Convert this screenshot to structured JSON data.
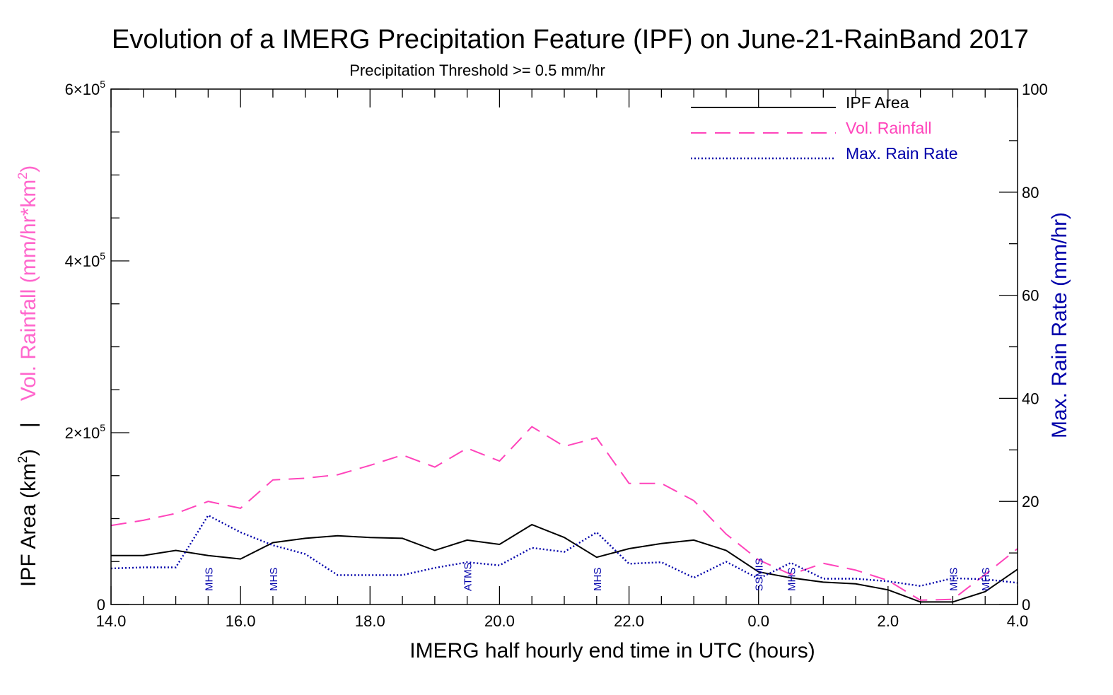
{
  "chart_data": {
    "type": "line",
    "title": "Evolution of a IMERG Precipitation Feature (IPF) on June-21-RainBand 2017",
    "subtitle": "Precipitation Threshold >= 0.5 mm/hr",
    "xlabel": "IMERG half hourly end time in UTC (hours)",
    "ylabel_left_top": "Vol. Rainfall (mm/hr*km",
    "ylabel_left_sup": "2",
    "ylabel_left_close": ")",
    "ylabel_left_separator": "|",
    "ylabel_left_bottom": "IPF Area (km",
    "ylabel_left_bottom_sup": "2",
    "ylabel_left_bottom_close": ")",
    "ylabel_right": "Max. Rain Rate (mm/hr)",
    "xlim": [
      0,
      14
    ],
    "ylim_left": [
      0,
      600000
    ],
    "ylim_right": [
      0,
      100
    ],
    "x_tick_positions": [
      0,
      2,
      4,
      6,
      8,
      10,
      12,
      14
    ],
    "x_tick_labels": [
      "14.0",
      "16.0",
      "18.0",
      "20.0",
      "22.0",
      "0.0",
      "2.0",
      "4.0"
    ],
    "y_left_ticks": [
      {
        "value": 0,
        "mantissa": "0",
        "exp": ""
      },
      {
        "value": 200000,
        "mantissa": "2×10",
        "exp": "5"
      },
      {
        "value": 400000,
        "mantissa": "4×10",
        "exp": "5"
      },
      {
        "value": 600000,
        "mantissa": "6×10",
        "exp": "5"
      }
    ],
    "y_right_ticks": [
      {
        "value": 0,
        "label": "0"
      },
      {
        "value": 20,
        "label": "20"
      },
      {
        "value": 40,
        "label": "40"
      },
      {
        "value": 60,
        "label": "60"
      },
      {
        "value": 80,
        "label": "80"
      },
      {
        "value": 100,
        "label": "100"
      }
    ],
    "x": [
      0,
      0.5,
      1,
      1.5,
      2,
      2.5,
      3,
      3.5,
      4,
      4.5,
      5,
      5.5,
      6,
      6.5,
      7,
      7.5,
      8,
      8.5,
      9,
      9.5,
      10,
      10.5,
      11,
      11.5,
      12,
      12.5,
      13,
      13.5,
      14
    ],
    "series": [
      {
        "name": "IPF Area",
        "axis": "left",
        "color": "#000000",
        "dash": "solid",
        "values": [
          57000,
          57000,
          63000,
          57000,
          53000,
          72000,
          77000,
          80000,
          78000,
          77000,
          63000,
          75000,
          70000,
          93000,
          78000,
          55000,
          65000,
          71000,
          75000,
          63000,
          38000,
          31000,
          26000,
          24000,
          17000,
          3000,
          3000,
          15000,
          41000
        ]
      },
      {
        "name": "Vol. Rainfall",
        "axis": "left",
        "color": "#ff44bb",
        "dash": "dashed",
        "values": [
          92000,
          98000,
          106000,
          120000,
          112000,
          145000,
          147000,
          151000,
          162000,
          174000,
          160000,
          182000,
          167000,
          207000,
          184000,
          194000,
          141000,
          141000,
          121000,
          82000,
          52000,
          35000,
          48000,
          40000,
          28000,
          5000,
          6000,
          35000,
          65000
        ]
      },
      {
        "name": "Max. Rain Rate",
        "axis": "right",
        "color": "#0000aa",
        "dash": "dotted",
        "values": [
          7,
          7.2,
          7.2,
          17.3,
          14,
          11.5,
          9.8,
          5.7,
          5.7,
          5.7,
          7.1,
          8.2,
          7.6,
          11,
          10.2,
          14,
          7.9,
          8.2,
          5.2,
          8.3,
          5,
          8.1,
          5,
          5,
          4.5,
          3.6,
          5.1,
          4.9,
          4.2
        ]
      }
    ],
    "sensors": [
      {
        "x": 1.5,
        "label": "MHS"
      },
      {
        "x": 2.5,
        "label": "MHS"
      },
      {
        "x": 5.5,
        "label": "ATMS"
      },
      {
        "x": 7.5,
        "label": "MHS"
      },
      {
        "x": 10.0,
        "label": "SSMIS"
      },
      {
        "x": 10.5,
        "label": "MHS"
      },
      {
        "x": 13.0,
        "label": "MHS"
      },
      {
        "x": 13.5,
        "label": "MHS"
      }
    ],
    "legend": [
      {
        "label": "IPF Area",
        "color": "#000000",
        "dash": "solid"
      },
      {
        "label": "Vol. Rainfall",
        "color": "#ff44bb",
        "dash": "dashed"
      },
      {
        "label": "Max. Rain Rate",
        "color": "#0000aa",
        "dash": "dotted"
      }
    ],
    "legend_position": "top-right",
    "grid": false,
    "colors": {
      "title": "#000000",
      "vol_rainfall_axis": "#ff66cc",
      "rain_rate_axis": "#0000aa",
      "sensor_labels": "#0000aa"
    }
  }
}
